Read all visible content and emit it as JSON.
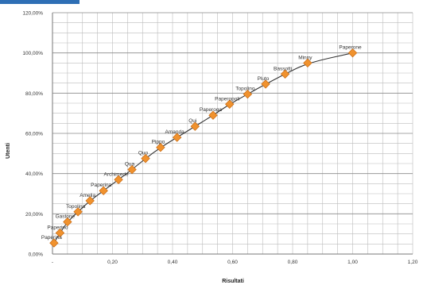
{
  "chart_data": {
    "type": "scatter",
    "title": "",
    "xlabel": "Risultati",
    "ylabel": "Utenti",
    "xlim": [
      0,
      1.2
    ],
    "ylim": [
      0,
      120
    ],
    "x_ticks": [
      "-",
      "0,20",
      "0,40",
      "0,60",
      "0,80",
      "1,00",
      "1,20"
    ],
    "y_ticks": [
      "0,00%",
      "20,00%",
      "40,00%",
      "60,00%",
      "80,00%",
      "100,00%",
      "120,00%"
    ],
    "grid": true,
    "marker_color": "#f0922e",
    "marker_edge_color": "#c96a12",
    "trendline_color": "#333333",
    "trendline": true,
    "points": [
      {
        "label": "Paperone",
        "x": 1.0,
        "y": 100.0
      },
      {
        "label": "Minny",
        "x": 0.85,
        "y": 95.0
      },
      {
        "label": "Bassotti",
        "x": 0.775,
        "y": 89.5
      },
      {
        "label": "Pluto",
        "x": 0.71,
        "y": 84.5
      },
      {
        "label": "Topolino",
        "x": 0.65,
        "y": 79.5
      },
      {
        "label": "Paperopoli",
        "x": 0.59,
        "y": 74.5
      },
      {
        "label": "Paperoga",
        "x": 0.535,
        "y": 69.0
      },
      {
        "label": "Qui",
        "x": 0.475,
        "y": 63.5
      },
      {
        "label": "Amanda",
        "x": 0.415,
        "y": 58.0
      },
      {
        "label": "Pippo",
        "x": 0.36,
        "y": 53.0
      },
      {
        "label": "Quo",
        "x": 0.31,
        "y": 47.5
      },
      {
        "label": "Qua",
        "x": 0.265,
        "y": 42.0
      },
      {
        "label": "Archimede",
        "x": 0.22,
        "y": 37.0
      },
      {
        "label": "Paperina",
        "x": 0.17,
        "y": 31.5
      },
      {
        "label": "Amelia",
        "x": 0.125,
        "y": 26.5
      },
      {
        "label": "Topolina",
        "x": 0.085,
        "y": 21.0
      },
      {
        "label": "Gastone",
        "x": 0.05,
        "y": 16.0
      },
      {
        "label": "Paperino",
        "x": 0.025,
        "y": 10.5
      },
      {
        "label": "Paperina",
        "x": 0.005,
        "y": 5.5
      }
    ]
  }
}
